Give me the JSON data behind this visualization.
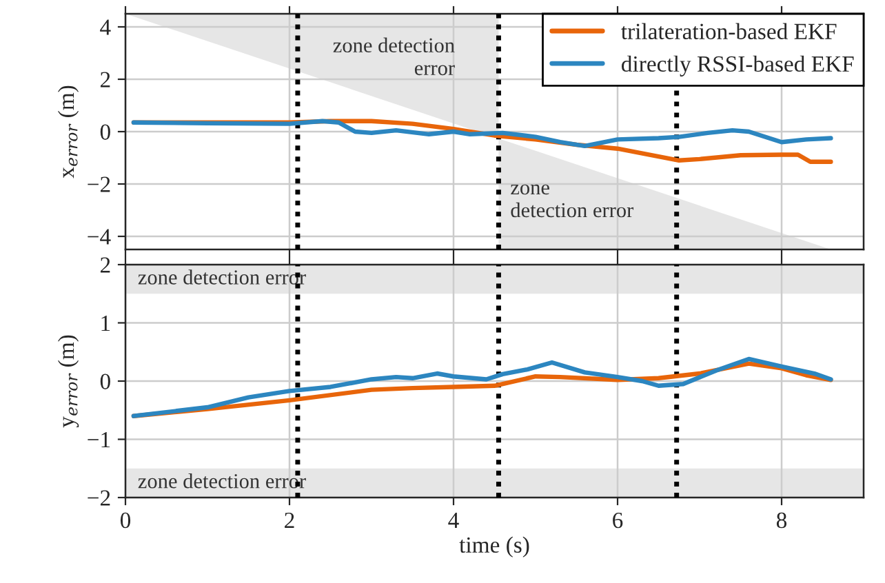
{
  "chart_data": [
    {
      "type": "line",
      "ylabel": "x$_{error}$ (m)",
      "xlim": [
        0,
        9
      ],
      "xticks": [
        0,
        2,
        4,
        6,
        8
      ],
      "ylim": [
        -4.5,
        4.5
      ],
      "yticks": [
        -4,
        -2,
        0,
        2,
        4
      ],
      "tick_labels": "y",
      "grid": true,
      "legend": "top right",
      "series": [
        {
          "type": "area",
          "color": "#e6e6e6",
          "x": [
            0,
            4.55
          ],
          "values": [
            4.5,
            -0.26
          ]
        },
        {
          "type": "area",
          "color": "#e6e6e6",
          "x": [
            4.55,
            8.6
          ],
          "values": [
            -0.26,
            -4.5
          ]
        },
        {
          "name": "trilateration-based EKF",
          "color": "#e8650a",
          "x": [
            0.1,
            1,
            2,
            2.5,
            3,
            3.5,
            4,
            4.5,
            5,
            5.5,
            6,
            6.5,
            6.75,
            7,
            7.5,
            8,
            8.2,
            8.35,
            8.6
          ],
          "values": [
            0.35,
            0.35,
            0.35,
            0.4,
            0.4,
            0.3,
            0.1,
            -0.15,
            -0.3,
            -0.5,
            -0.65,
            -0.95,
            -1.1,
            -1.05,
            -0.9,
            -0.88,
            -0.88,
            -1.15,
            -1.15
          ]
        },
        {
          "name": "directly RSSI-based EKF",
          "color": "#2c86c0",
          "x": [
            0.1,
            1,
            2,
            2.4,
            2.6,
            2.8,
            3.0,
            3.3,
            3.7,
            4,
            4.2,
            4.6,
            5,
            5.3,
            5.6,
            6.0,
            6.5,
            6.75,
            7.1,
            7.4,
            7.6,
            8,
            8.3,
            8.6
          ],
          "values": [
            0.35,
            0.32,
            0.3,
            0.4,
            0.35,
            0.0,
            -0.05,
            0.05,
            -0.1,
            0.0,
            -0.1,
            -0.05,
            -0.2,
            -0.4,
            -0.55,
            -0.3,
            -0.25,
            -0.2,
            -0.05,
            0.05,
            0.0,
            -0.4,
            -0.3,
            -0.25
          ]
        }
      ],
      "ref_lines": [
        {
          "axis": "x",
          "value": 2.1,
          "color": "#000000",
          "line_style": "dotted"
        },
        {
          "axis": "x",
          "value": 4.55,
          "color": "#000000",
          "line_style": "dotted"
        },
        {
          "axis": "x",
          "value": 6.72,
          "color": "#000000",
          "line_style": "dotted"
        }
      ],
      "annotations": [
        "zone detection\nerror",
        "zone\ndetection error"
      ]
    },
    {
      "type": "line",
      "xlabel": "time (s)",
      "ylabel": "y$_{error}$ (m)",
      "xlim": [
        0,
        9
      ],
      "xticks": [
        0,
        2,
        4,
        6,
        8
      ],
      "ylim": [
        -2,
        2
      ],
      "yticks": [
        -2,
        -1,
        0,
        1,
        2
      ],
      "grid": true,
      "series": [
        {
          "color": "#e8650a",
          "x": [
            0.1,
            1,
            2,
            3,
            3.5,
            4,
            4.5,
            5,
            5.3,
            6,
            6.5,
            7,
            7.6,
            8,
            8.3,
            8.6
          ],
          "values": [
            -0.6,
            -0.48,
            -0.33,
            -0.15,
            -0.12,
            -0.1,
            -0.08,
            0.08,
            0.07,
            0.02,
            0.05,
            0.13,
            0.3,
            0.22,
            0.1,
            0.02
          ]
        },
        {
          "color": "#2c86c0",
          "x": [
            0.1,
            1,
            1.5,
            2,
            2.5,
            3,
            3.3,
            3.5,
            3.8,
            4,
            4.4,
            4.6,
            4.9,
            5.2,
            5.6,
            6,
            6.3,
            6.5,
            6.8,
            7.2,
            7.6,
            8,
            8.4,
            8.6
          ],
          "values": [
            -0.6,
            -0.45,
            -0.28,
            -0.17,
            -0.1,
            0.03,
            0.07,
            0.05,
            0.13,
            0.08,
            0.03,
            0.12,
            0.2,
            0.32,
            0.15,
            0.07,
            0.0,
            -0.08,
            -0.05,
            0.18,
            0.38,
            0.25,
            0.13,
            0.03
          ]
        }
      ],
      "ref_lines": [
        {
          "axis": "x",
          "value": 2.1,
          "color": "#000000",
          "line_style": "dotted"
        },
        {
          "axis": "x",
          "value": 4.55,
          "color": "#000000",
          "line_style": "dotted"
        },
        {
          "axis": "x",
          "value": 6.72,
          "color": "#000000",
          "line_style": "dotted"
        }
      ],
      "bands": [
        {
          "axis": "y",
          "from": 1.5,
          "to": 2,
          "label": "zone detection error",
          "color": "#e6e6e6"
        },
        {
          "axis": "y",
          "from": -2,
          "to": -1.5,
          "label": "zone detection error",
          "color": "#e6e6e6"
        }
      ]
    }
  ]
}
